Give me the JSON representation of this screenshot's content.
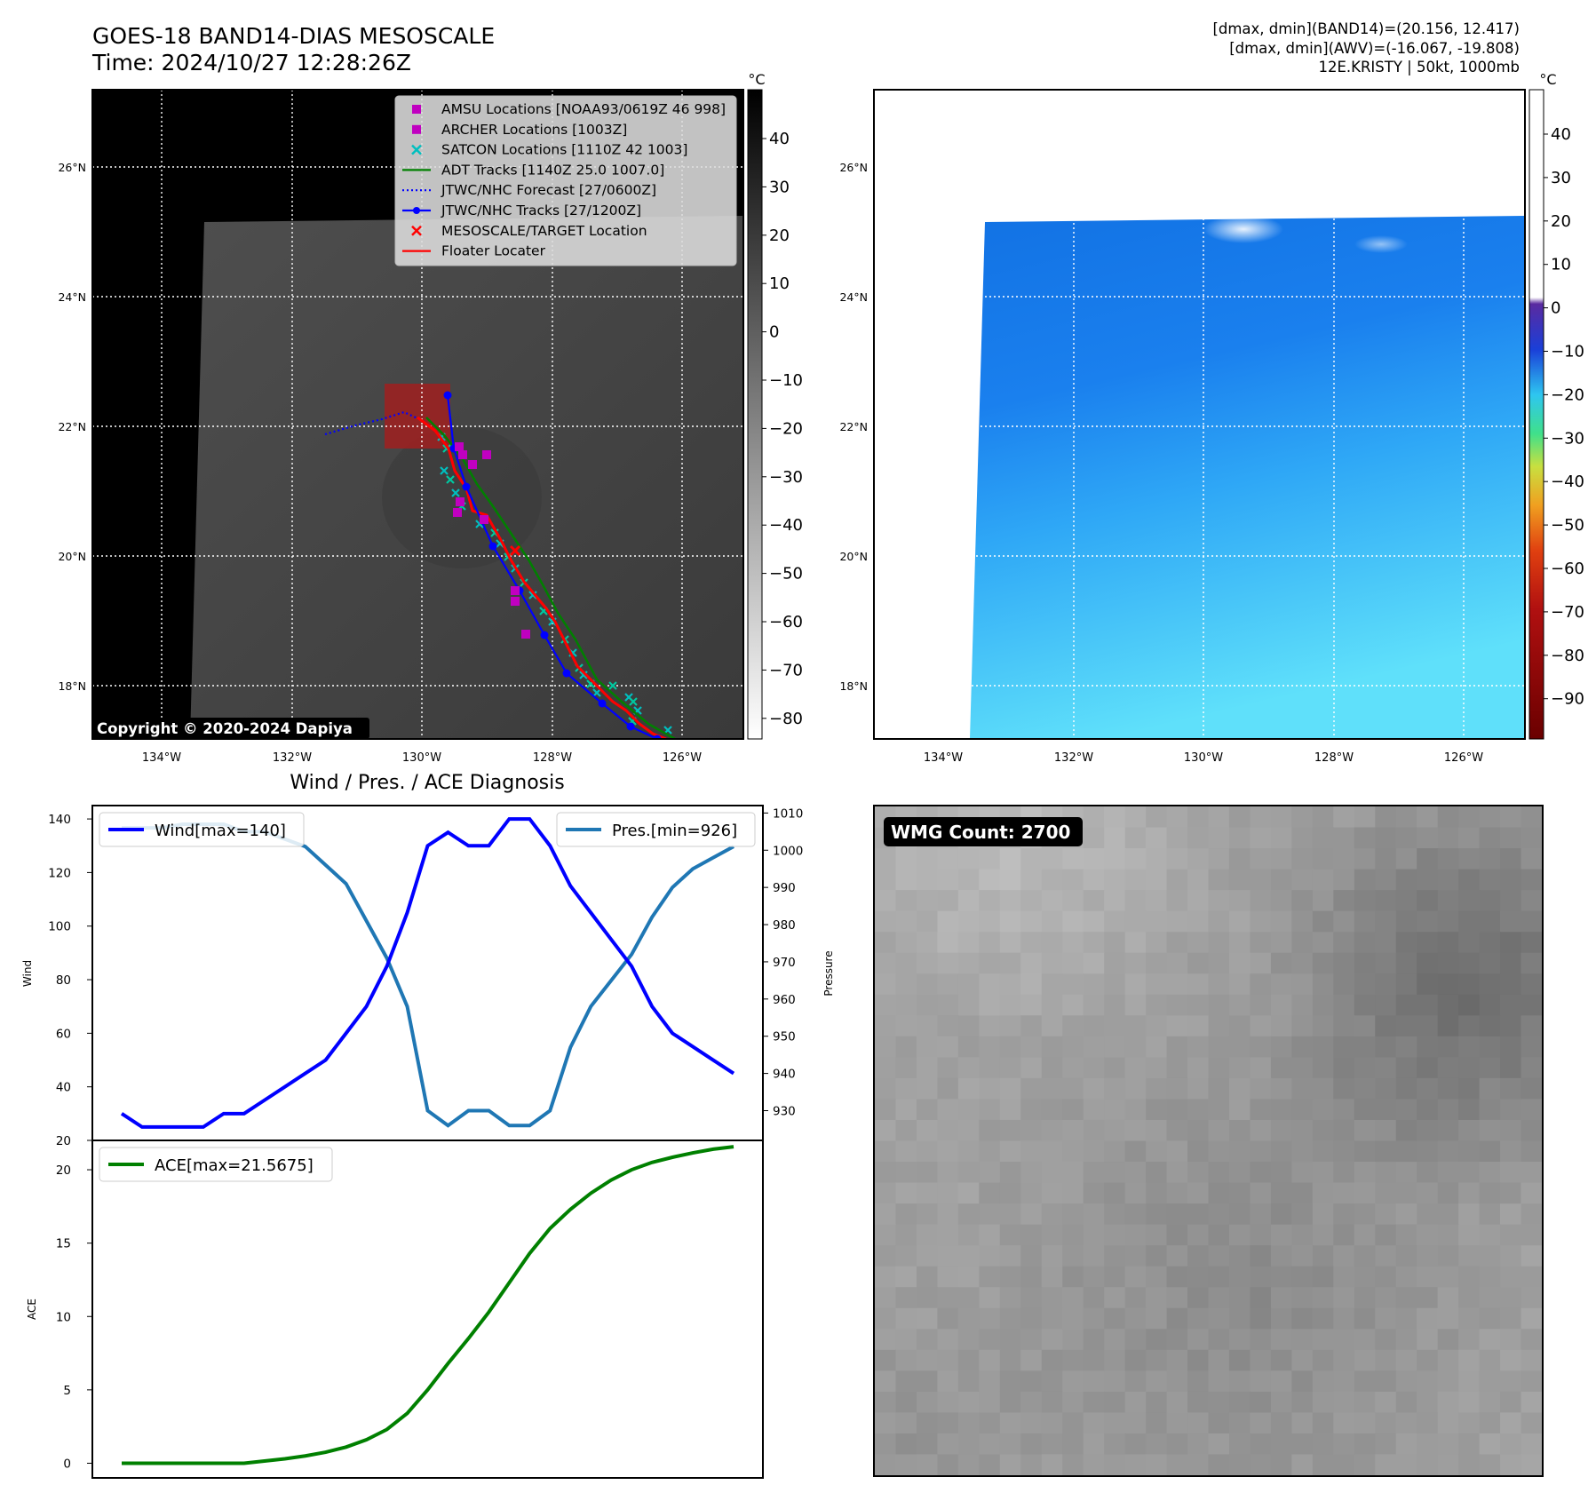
{
  "header": {
    "title_line1": "GOES-18 BAND14-DIAS MESOSCALE",
    "title_line2": "Time: 2024/10/27 12:28:26Z",
    "right_line1": "[dmax, dmin](BAND14)=(20.156, 12.417)",
    "right_line2": "[dmax, dmin](AWV)=(-16.067, -19.808)",
    "right_line3": "12E.KRISTY | 50kt, 1000mb"
  },
  "map": {
    "lat_labels": [
      "26°N",
      "24°N",
      "22°N",
      "20°N",
      "18°N"
    ],
    "lon_labels": [
      "134°W",
      "132°W",
      "130°W",
      "128°W",
      "126°W"
    ],
    "copyright": "Copyright © 2020-2024 Dapiya",
    "legend": [
      {
        "label": "AMSU Locations [NOAA93/0619Z 46 998]",
        "color": "#c000c0",
        "marker": "square"
      },
      {
        "label": "ARCHER Locations [1003Z]",
        "color": "#c000c0",
        "marker": "square"
      },
      {
        "label": "SATCON Locations [1110Z 42 1003]",
        "color": "#00bfbf",
        "marker": "x"
      },
      {
        "label": "ADT Tracks [1140Z 25.0 1007.0]",
        "color": "#008000",
        "marker": "line"
      },
      {
        "label": "JTWC/NHC Forecast [27/0600Z]",
        "color": "#0000ff",
        "marker": "dotted"
      },
      {
        "label": "JTWC/NHC Tracks [27/1200Z]",
        "color": "#0000ff",
        "marker": "line-dot"
      },
      {
        "label": "MESOSCALE/TARGET Location",
        "color": "#ff0000",
        "marker": "x"
      },
      {
        "label": "Floater Locater",
        "color": "#ff0000",
        "marker": "line"
      }
    ]
  },
  "colorbars": {
    "unit": "°C",
    "left_ticks": [
      "40",
      "30",
      "20",
      "10",
      "0",
      "−10",
      "−20",
      "−30",
      "−40",
      "−50",
      "−60",
      "−70",
      "−80"
    ],
    "right_ticks": [
      "40",
      "30",
      "20",
      "10",
      "0",
      "−10",
      "−20",
      "−30",
      "−40",
      "−50",
      "−60",
      "−70",
      "−80",
      "−90"
    ]
  },
  "wmg": {
    "label": "WMG Count: 2700"
  },
  "chart_data": [
    {
      "type": "line",
      "title": "Wind / Pres. / ACE Diagnosis",
      "ylabel": "Wind",
      "y2label": "Pressure",
      "ylim": [
        20,
        145
      ],
      "y2lim": [
        922,
        1012
      ],
      "yticks": [
        "140",
        "120",
        "100",
        "80",
        "60",
        "40",
        "20"
      ],
      "y2ticks": [
        "1010",
        "1000",
        "990",
        "980",
        "970",
        "960",
        "950",
        "940",
        "930"
      ],
      "series": [
        {
          "name": "Wind[max=140]",
          "color": "#0000ff",
          "values": [
            30,
            25,
            25,
            25,
            25,
            30,
            30,
            35,
            40,
            45,
            50,
            60,
            70,
            85,
            105,
            130,
            135,
            130,
            130,
            140,
            140,
            130,
            115,
            105,
            95,
            85,
            70,
            60,
            55,
            50,
            45
          ]
        },
        {
          "name": "Pres.[min=926]",
          "color": "#1f77b4",
          "values": [
            1006,
            1006,
            1006,
            1007,
            1007,
            1007,
            1005,
            1005,
            1003,
            1001,
            996,
            991,
            981,
            971,
            958,
            930,
            926,
            930,
            930,
            926,
            926,
            930,
            947,
            958,
            965,
            972,
            982,
            990,
            995,
            998,
            1001
          ]
        }
      ]
    },
    {
      "type": "line",
      "ylabel": "ACE",
      "ylim": [
        -1,
        22
      ],
      "yticks": [
        "20",
        "15",
        "10",
        "5",
        "0"
      ],
      "series": [
        {
          "name": "ACE[max=21.5675]",
          "color": "#008000",
          "values": [
            0,
            0,
            0,
            0,
            0,
            0,
            0,
            0.15,
            0.3,
            0.5,
            0.75,
            1.1,
            1.6,
            2.3,
            3.4,
            5.0,
            6.8,
            8.5,
            10.3,
            12.3,
            14.3,
            16.0,
            17.3,
            18.4,
            19.3,
            20.0,
            20.5,
            20.85,
            21.15,
            21.4,
            21.5675
          ]
        }
      ]
    }
  ]
}
